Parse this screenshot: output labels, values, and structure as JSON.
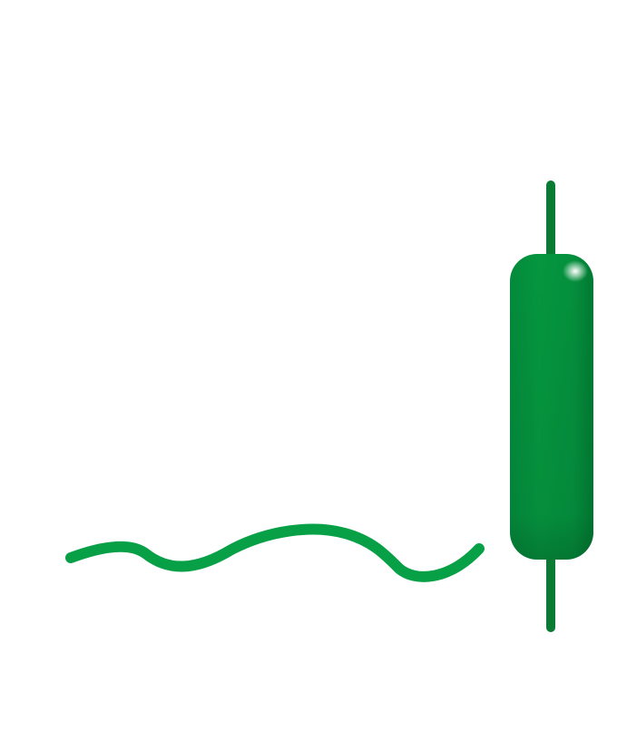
{
  "illustration": {
    "colors": {
      "background": "#ffffff",
      "wave": "#08a047",
      "wick": "#0a7a34",
      "body_highlight": "#0c9a44",
      "body_mid": "#05913f",
      "body_shadow": "#026f2d",
      "gloss": "#ffffff"
    },
    "icons": [
      "wavy-line-icon",
      "candlestick-icon"
    ]
  }
}
